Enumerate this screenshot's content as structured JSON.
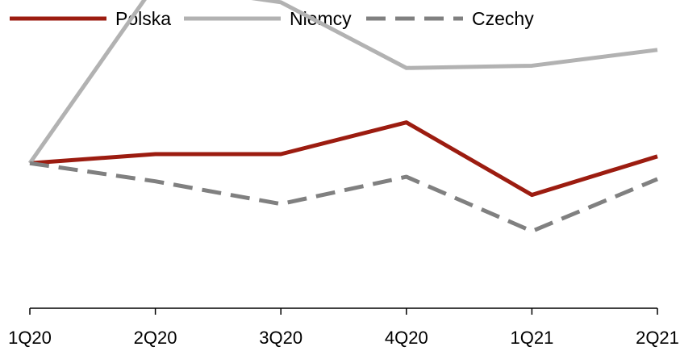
{
  "chart_data": {
    "type": "line",
    "title": "",
    "xlabel": "",
    "ylabel": "",
    "categories": [
      "1Q20",
      "2Q20",
      "3Q20",
      "4Q20",
      "1Q21",
      "2Q21"
    ],
    "ylim": [
      -6.4,
      7.2
    ],
    "yaxis_visible": false,
    "grid": false,
    "legend_position": "top-left",
    "series": [
      {
        "name": "Polska",
        "color": "#9c1c10",
        "style": "solid",
        "values": [
          0,
          0.4,
          0.4,
          1.8,
          -1.4,
          0.3
        ]
      },
      {
        "name": "Niemcy",
        "color": "#b2b2b2",
        "style": "solid",
        "values": [
          0,
          7.9,
          7.1,
          4.2,
          4.3,
          5.0
        ]
      },
      {
        "name": "Czechy",
        "color": "#808080",
        "style": "dashed",
        "values": [
          0,
          -0.8,
          -1.8,
          -0.6,
          -3.0,
          -0.7
        ]
      }
    ]
  }
}
